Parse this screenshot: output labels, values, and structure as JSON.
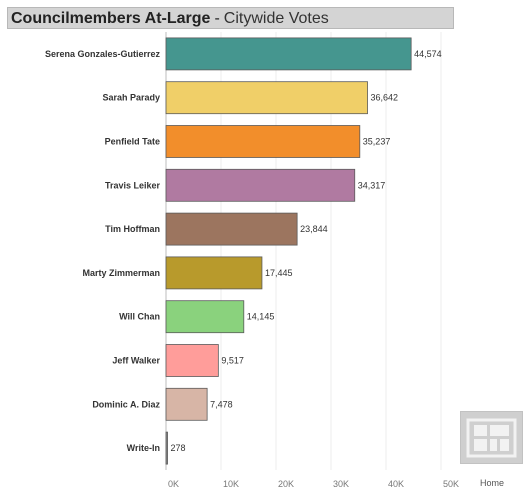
{
  "header": {
    "title": "Councilmembers At-Large",
    "separator": "-",
    "subtitle": "Citywide Votes"
  },
  "home": {
    "label": "Home",
    "icon": "grid-home-icon"
  },
  "chart_data": {
    "type": "bar",
    "orientation": "horizontal",
    "categories": [
      "Serena Gonzales-Gutierrez",
      "Sarah Parady",
      "Penfield Tate",
      "Travis Leiker",
      "Tim Hoffman",
      "Marty Zimmerman",
      "Will Chan",
      "Jeff Walker",
      "Dominic A. Diaz",
      "Write-In"
    ],
    "values": [
      44574,
      36642,
      35237,
      34317,
      23844,
      17445,
      14145,
      9517,
      7478,
      278
    ],
    "value_labels": [
      "44,574",
      "36,642",
      "35,237",
      "34,317",
      "23,844",
      "17,445",
      "14,145",
      "9,517",
      "7,478",
      "278"
    ],
    "colors": [
      "#45968f",
      "#f0cf68",
      "#f28e2b",
      "#b07aa1",
      "#9c755f",
      "#b89a2c",
      "#8ad27d",
      "#ff9d9a",
      "#d7b5a6",
      "#8c8c8c"
    ],
    "xticks": [
      0,
      10000,
      20000,
      30000,
      40000,
      50000
    ],
    "xtick_labels": [
      "0K",
      "10K",
      "20K",
      "30K",
      "40K",
      "50K"
    ],
    "xlim": [
      0,
      50000
    ],
    "grid": true
  }
}
